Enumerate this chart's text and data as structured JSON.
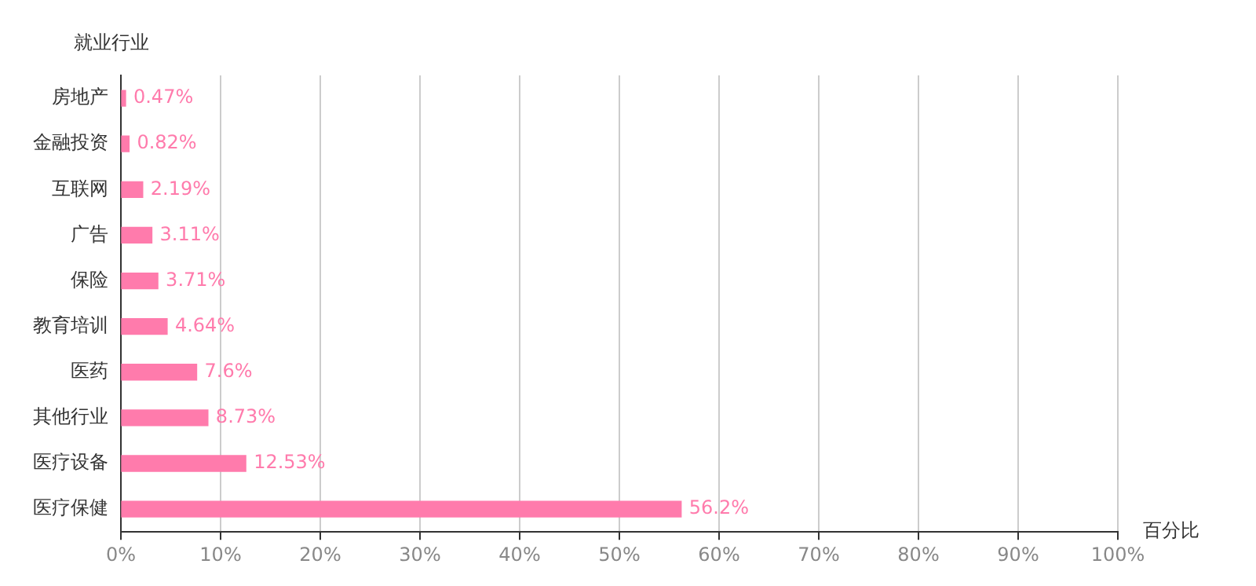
{
  "chart_data": {
    "type": "bar",
    "orientation": "horizontal",
    "xlabel": "百分比",
    "ylabel": "就业行业",
    "categories": [
      "房地产",
      "金融投资",
      "互联网",
      "广告",
      "保险",
      "教育培训",
      "医药",
      "其他行业",
      "医疗设备",
      "医疗保健"
    ],
    "values": [
      0.47,
      0.82,
      2.19,
      3.11,
      3.71,
      4.64,
      7.6,
      8.73,
      12.53,
      56.2
    ],
    "value_labels": [
      "0.47%",
      "0.82%",
      "2.19%",
      "3.11%",
      "3.71%",
      "4.64%",
      "7.6%",
      "8.73%",
      "12.53%",
      "56.2%"
    ],
    "color": "#ff7bac",
    "xlim": [
      0,
      100
    ],
    "xticks": [
      {
        "value": 0,
        "label": "0%"
      },
      {
        "value": 10,
        "label": "10%"
      },
      {
        "value": 20,
        "label": "20%"
      },
      {
        "value": 30,
        "label": "30%"
      },
      {
        "value": 40,
        "label": "40%"
      },
      {
        "value": 50,
        "label": "50%"
      },
      {
        "value": 60,
        "label": "60%"
      },
      {
        "value": 70,
        "label": "70%"
      },
      {
        "value": 80,
        "label": "80%"
      },
      {
        "value": 90,
        "label": "90%"
      },
      {
        "value": 100,
        "label": "100%"
      }
    ],
    "grid": "x",
    "legend": false
  }
}
